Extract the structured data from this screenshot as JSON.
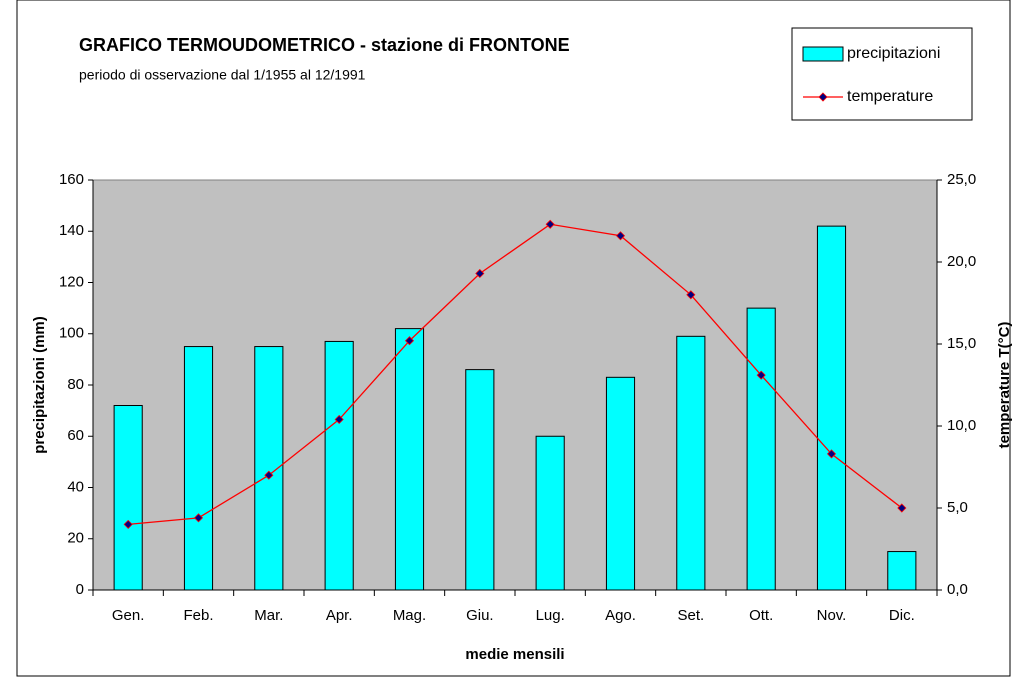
{
  "chart_data": {
    "type": "bar_line",
    "title": "GRAFICO TERMOUDOMETRICO - stazione di FRONTONE",
    "subtitle": "periodo di osservazione dal 1/1955 al 12/1991",
    "x_label": "medie mensili",
    "y_label": "precipitazioni (mm)",
    "y2_label": "temperature T(°C)",
    "categories": [
      "Gen.",
      "Feb.",
      "Mar.",
      "Apr.",
      "Mag.",
      "Giu.",
      "Lug.",
      "Ago.",
      "Set.",
      "Ott.",
      "Nov.",
      "Dic."
    ],
    "series": [
      {
        "name": "precipitazioni",
        "type": "bar",
        "color": "#00ffff",
        "values": [
          72,
          95,
          95,
          97,
          102,
          86,
          60,
          83,
          99,
          110,
          142,
          15
        ]
      },
      {
        "name": "temperature",
        "type": "line",
        "axis": "y2",
        "color": "#ff0000",
        "marker_color": "#000080",
        "values": [
          4.0,
          4.4,
          7.0,
          10.4,
          15.2,
          19.3,
          22.3,
          21.6,
          18.0,
          13.1,
          8.3,
          5.0
        ]
      }
    ],
    "ylim": [
      0,
      160
    ],
    "yticks": [
      0,
      20,
      40,
      60,
      80,
      100,
      120,
      140,
      160
    ],
    "y2lim": [
      0,
      25
    ],
    "y2ticks": [
      {
        "value": 0,
        "label": "0,0"
      },
      {
        "value": 5,
        "label": "5,0"
      },
      {
        "value": 10,
        "label": "10,0"
      },
      {
        "value": 15,
        "label": "15,0"
      },
      {
        "value": 20,
        "label": "20,0"
      },
      {
        "value": 25,
        "label": "25,0"
      }
    ],
    "grid": false,
    "legend": "top-right",
    "plot_background": "#c0c0c0"
  }
}
